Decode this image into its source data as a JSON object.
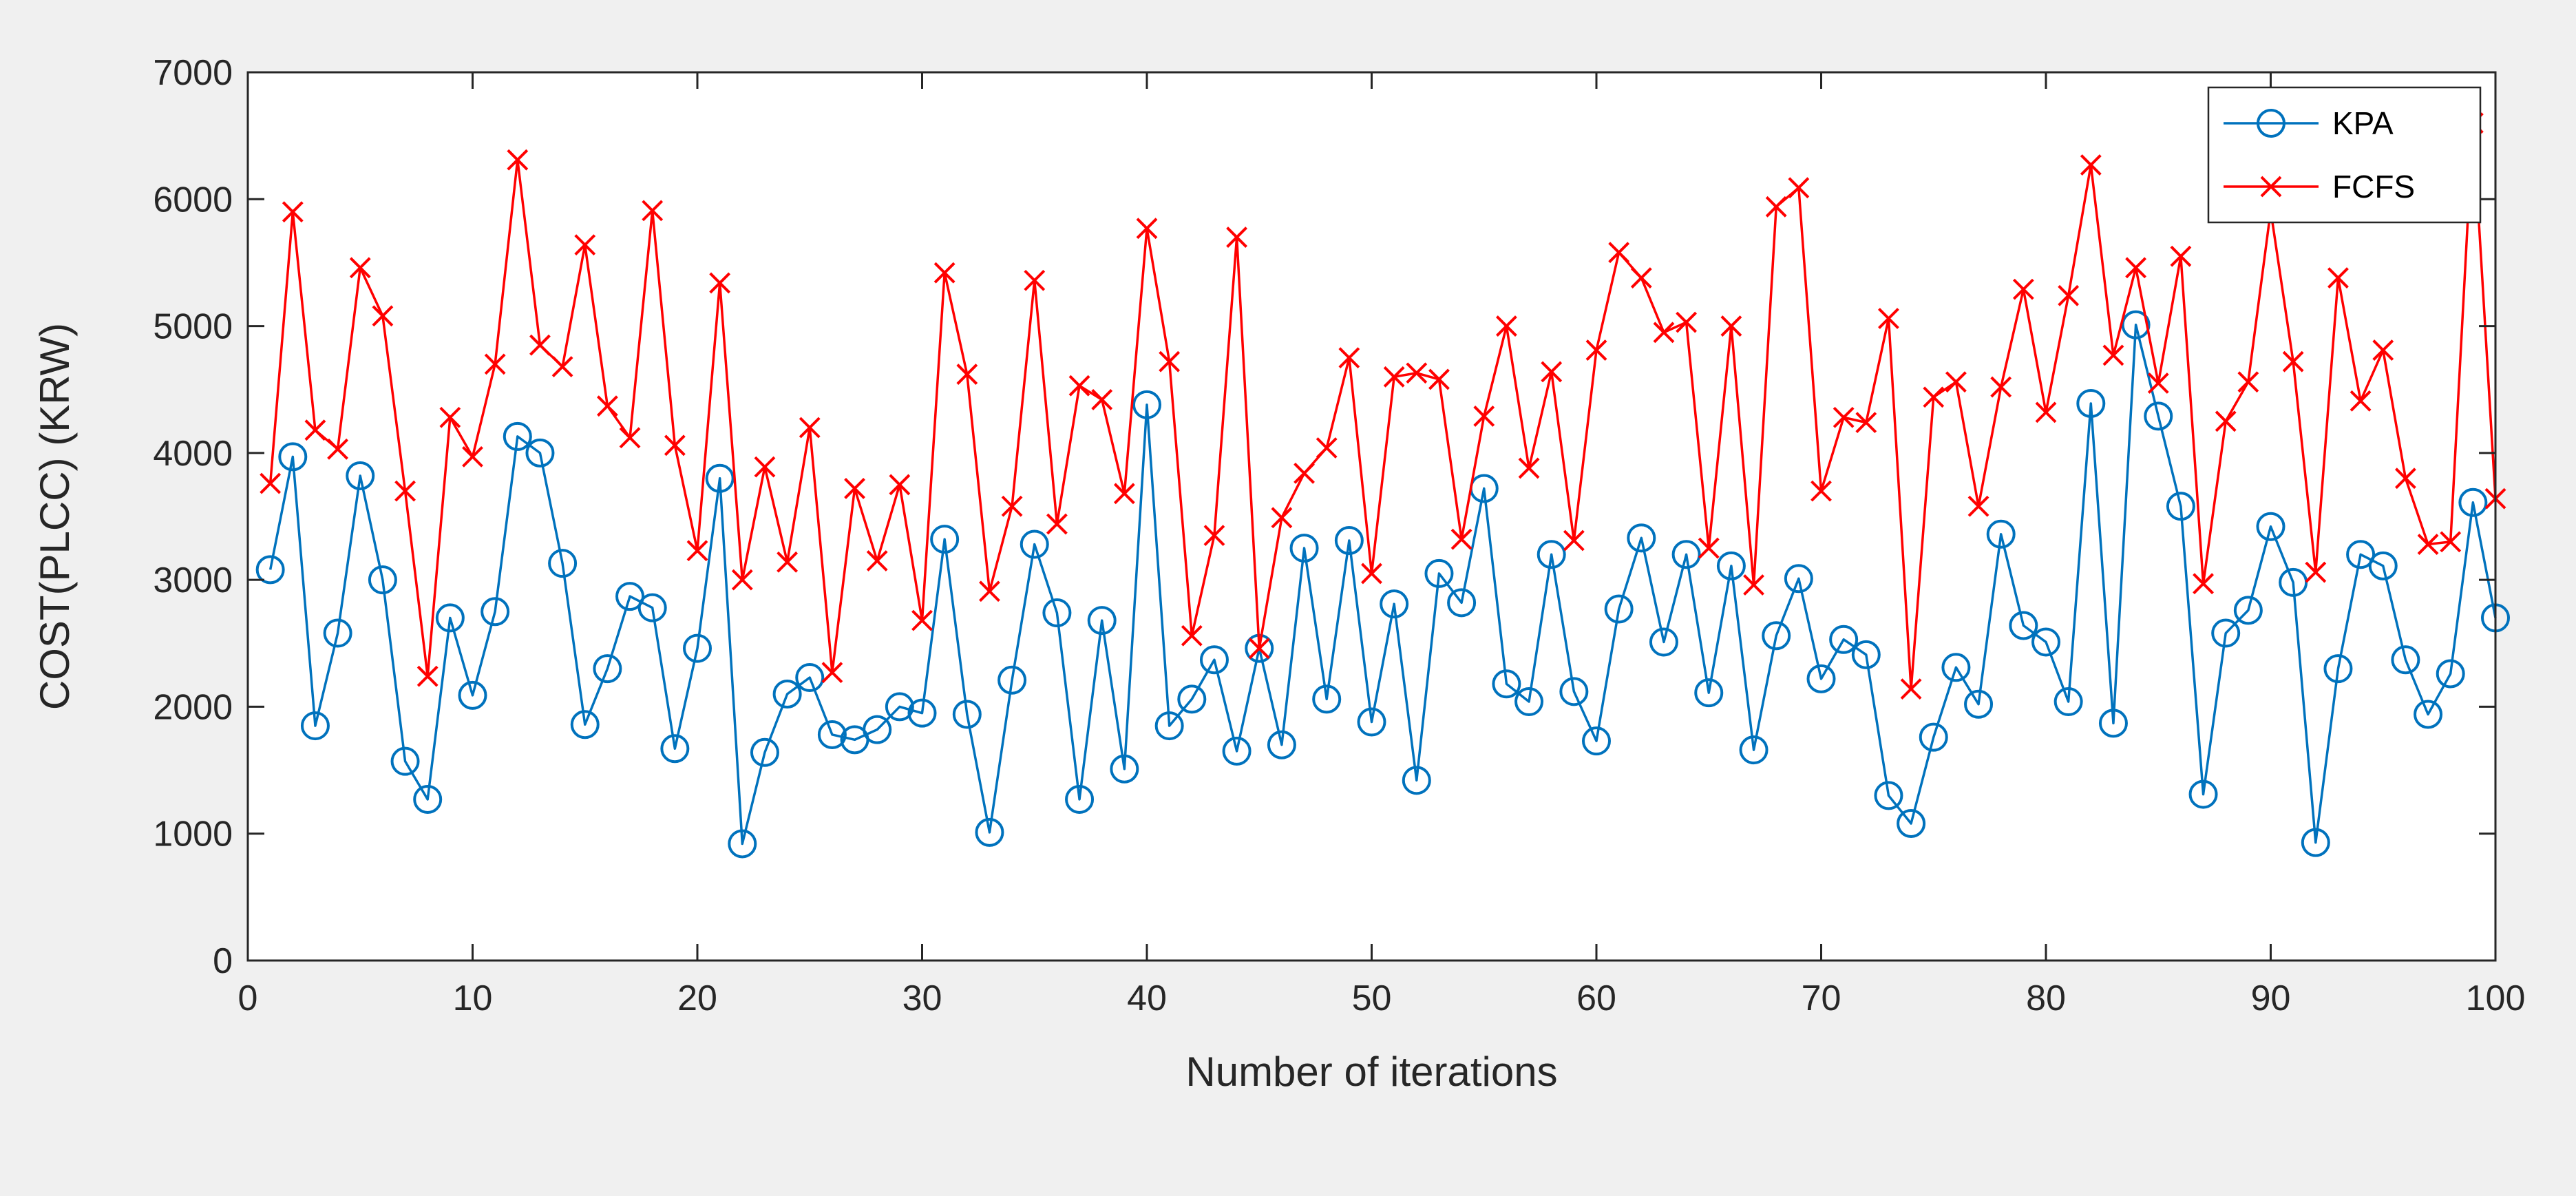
{
  "chart_data": {
    "type": "line",
    "xlabel": "Number of iterations",
    "ylabel": "COST(PLCC) (KRW)",
    "xlim": [
      0,
      100
    ],
    "ylim": [
      0,
      7000
    ],
    "xticks": [
      0,
      10,
      20,
      30,
      40,
      50,
      60,
      70,
      80,
      90,
      100
    ],
    "yticks": [
      0,
      1000,
      2000,
      3000,
      4000,
      5000,
      6000,
      7000
    ],
    "grid": false,
    "legend_position": "top-right",
    "x": [
      1,
      2,
      3,
      4,
      5,
      6,
      7,
      8,
      9,
      10,
      11,
      12,
      13,
      14,
      15,
      16,
      17,
      18,
      19,
      20,
      21,
      22,
      23,
      24,
      25,
      26,
      27,
      28,
      29,
      30,
      31,
      32,
      33,
      34,
      35,
      36,
      37,
      38,
      39,
      40,
      41,
      42,
      43,
      44,
      45,
      46,
      47,
      48,
      49,
      50,
      51,
      52,
      53,
      54,
      55,
      56,
      57,
      58,
      59,
      60,
      61,
      62,
      63,
      64,
      65,
      66,
      67,
      68,
      69,
      70,
      71,
      72,
      73,
      74,
      75,
      76,
      77,
      78,
      79,
      80,
      81,
      82,
      83,
      84,
      85,
      86,
      87,
      88,
      89,
      90,
      91,
      92,
      93,
      94,
      95,
      96,
      97,
      98,
      99,
      100
    ],
    "series": [
      {
        "name": "KPA",
        "color": "#0072bd",
        "marker": "circle",
        "values": [
          3080,
          3970,
          1850,
          2580,
          3820,
          3000,
          1570,
          1270,
          2700,
          2090,
          2750,
          4130,
          4000,
          3130,
          1860,
          2300,
          2870,
          2780,
          1670,
          2460,
          3800,
          920,
          1640,
          2100,
          2230,
          1780,
          1740,
          1820,
          2000,
          1950,
          3320,
          1940,
          1010,
          2210,
          3280,
          2740,
          1270,
          2680,
          1510,
          4380,
          1850,
          2060,
          2370,
          1650,
          2460,
          1700,
          3250,
          2060,
          3310,
          1880,
          2810,
          1420,
          3050,
          2820,
          3720,
          2180,
          2040,
          3200,
          2120,
          1730,
          2770,
          3330,
          2510,
          3200,
          2110,
          3110,
          1660,
          2560,
          3010,
          2220,
          2530,
          2410,
          1300,
          1080,
          1760,
          2310,
          2020,
          3360,
          2640,
          2510,
          2040,
          4390,
          1870,
          5010,
          4290,
          3580,
          1310,
          2580,
          2760,
          3420,
          2980,
          930,
          2300,
          3200,
          3110,
          2370,
          1940,
          2260,
          3610,
          2700
        ]
      },
      {
        "name": "FCFS",
        "color": "#ff0000",
        "marker": "x",
        "values": [
          3760,
          5900,
          4180,
          4030,
          5460,
          5080,
          3700,
          2240,
          4280,
          3970,
          4700,
          6310,
          4850,
          4680,
          5640,
          4370,
          4120,
          5910,
          4060,
          3230,
          5340,
          3000,
          3890,
          3140,
          4200,
          2270,
          3720,
          3150,
          3750,
          2680,
          5420,
          4620,
          2910,
          3580,
          5360,
          3440,
          4530,
          4420,
          3680,
          5770,
          4720,
          2560,
          3350,
          5700,
          2460,
          3490,
          3840,
          4040,
          4750,
          3050,
          4600,
          4630,
          4580,
          3320,
          4290,
          5000,
          3880,
          4640,
          3310,
          4810,
          5580,
          5380,
          4950,
          5030,
          3250,
          5000,
          2960,
          5940,
          6090,
          3700,
          4280,
          4240,
          5060,
          2140,
          4440,
          4560,
          3580,
          4520,
          5290,
          4320,
          5240,
          6270,
          4770,
          5460,
          4550,
          5550,
          2970,
          4250,
          4560,
          5910,
          4720,
          3060,
          5380,
          4410,
          4810,
          3800,
          3280,
          3300,
          6600,
          3640
        ]
      }
    ]
  }
}
